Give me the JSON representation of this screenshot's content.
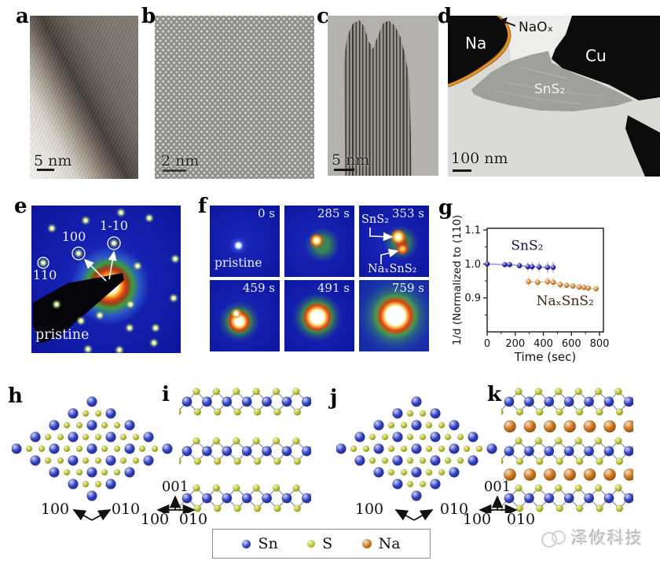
{
  "figure": {
    "panels": {
      "a": {
        "label": "a",
        "scale_bar": "5 nm"
      },
      "b": {
        "label": "b",
        "scale_bar": "2 nm"
      },
      "c": {
        "label": "c",
        "scale_bar": "5 nm"
      },
      "d": {
        "label": "d",
        "scale_bar": "100 nm",
        "regions": {
          "na": "Na",
          "naox": "NaOₓ",
          "cu": "Cu",
          "sns2": "SnS₂"
        }
      },
      "e": {
        "label": "e",
        "caption": "pristine",
        "spot_100": "100",
        "spot_1m10": "1-10",
        "spot_110": "110",
        "spot_points": [
          [
            26,
            29
          ],
          [
            69,
            19
          ],
          [
            114,
            9
          ],
          [
            150,
            16
          ],
          [
            183,
            68
          ],
          [
            135,
            77
          ],
          [
            181,
            118
          ],
          [
            126,
            126
          ],
          [
            87,
            140
          ],
          [
            32,
            126
          ],
          [
            72,
            183
          ],
          [
            125,
            156
          ],
          [
            158,
            156
          ],
          [
            63,
            147
          ],
          [
            112,
            184
          ],
          [
            156,
            175
          ],
          [
            60,
            61
          ],
          [
            105,
            48
          ],
          [
            15,
            73
          ]
        ],
        "circled": [
          [
            60,
            61,
            8
          ],
          [
            105,
            48,
            8
          ],
          [
            15,
            73,
            7
          ]
        ]
      },
      "f": {
        "label": "f",
        "frames": [
          {
            "time": "0 s",
            "note": "pristine"
          },
          {
            "time": "285 s"
          },
          {
            "time": "353 s",
            "top_label": "SnS₂",
            "bottom_label": "NaₓSnS₂"
          },
          {
            "time": "459 s"
          },
          {
            "time": "491 s"
          },
          {
            "time": "759 s"
          }
        ]
      },
      "g": {
        "label": "g"
      },
      "h": {
        "label": "h",
        "axis_a": "100",
        "axis_b": "010"
      },
      "i": {
        "label": "i",
        "axis_up": "001",
        "axis_a": "100",
        "axis_b": "010"
      },
      "j": {
        "label": "j",
        "axis_a": "100",
        "axis_b": "010"
      },
      "k": {
        "label": "k",
        "axis_up": "001",
        "axis_a": "100",
        "axis_b": "010"
      }
    },
    "legend": {
      "items": [
        {
          "name": "Sn",
          "color": "#3040c2"
        },
        {
          "name": "S",
          "color": "#bfc72c"
        },
        {
          "name": "Na",
          "color": "#cc7318"
        }
      ]
    },
    "watermark": "泽攸科技"
  },
  "chart_data": {
    "type": "scatter",
    "title": "",
    "xlabel": "Time (sec)",
    "ylabel": "1/d (Normalized to (110)",
    "xlim": [
      0,
      830
    ],
    "ylim": [
      0.8,
      1.105
    ],
    "xticks": [
      0,
      200,
      400,
      600,
      800
    ],
    "yticks": [
      0.9,
      1.0,
      1.1
    ],
    "xminor": [
      100,
      300,
      500,
      700
    ],
    "yminor": [
      0.85,
      0.95,
      1.05
    ],
    "grid": false,
    "legend_position": "inline-annotations",
    "series": [
      {
        "name": "SnS₂",
        "color": "#2a2ab8",
        "err_color": "#9aa0d8",
        "label_color": "#15153c",
        "label_xy": [
          170,
          1.042
        ],
        "x": [
          0,
          125,
          160,
          230,
          290,
          320,
          370,
          430,
          470
        ],
        "y": [
          1.0,
          0.998,
          0.998,
          0.995,
          0.992,
          0.992,
          0.991,
          0.99,
          0.99
        ],
        "yerr": [
          0.004,
          0.006,
          0.006,
          0.009,
          0.013,
          0.013,
          0.015,
          0.016,
          0.016
        ]
      },
      {
        "name": "NaₓSnS₂",
        "color": "#e2943a",
        "err_color": "#edc88e",
        "label_color": "#3c2a10",
        "label_xy": [
          350,
          0.878
        ],
        "x": [
          295,
          360,
          430,
          470,
          520,
          565,
          610,
          655,
          690,
          720,
          775
        ],
        "y": [
          0.948,
          0.946,
          0.948,
          0.946,
          0.939,
          0.937,
          0.935,
          0.932,
          0.931,
          0.929,
          0.927
        ],
        "yerr": [
          0.013,
          0.013,
          0.014,
          0.014,
          0.01,
          0.009,
          0.008,
          0.008,
          0.008,
          0.007,
          0.007
        ]
      }
    ]
  }
}
